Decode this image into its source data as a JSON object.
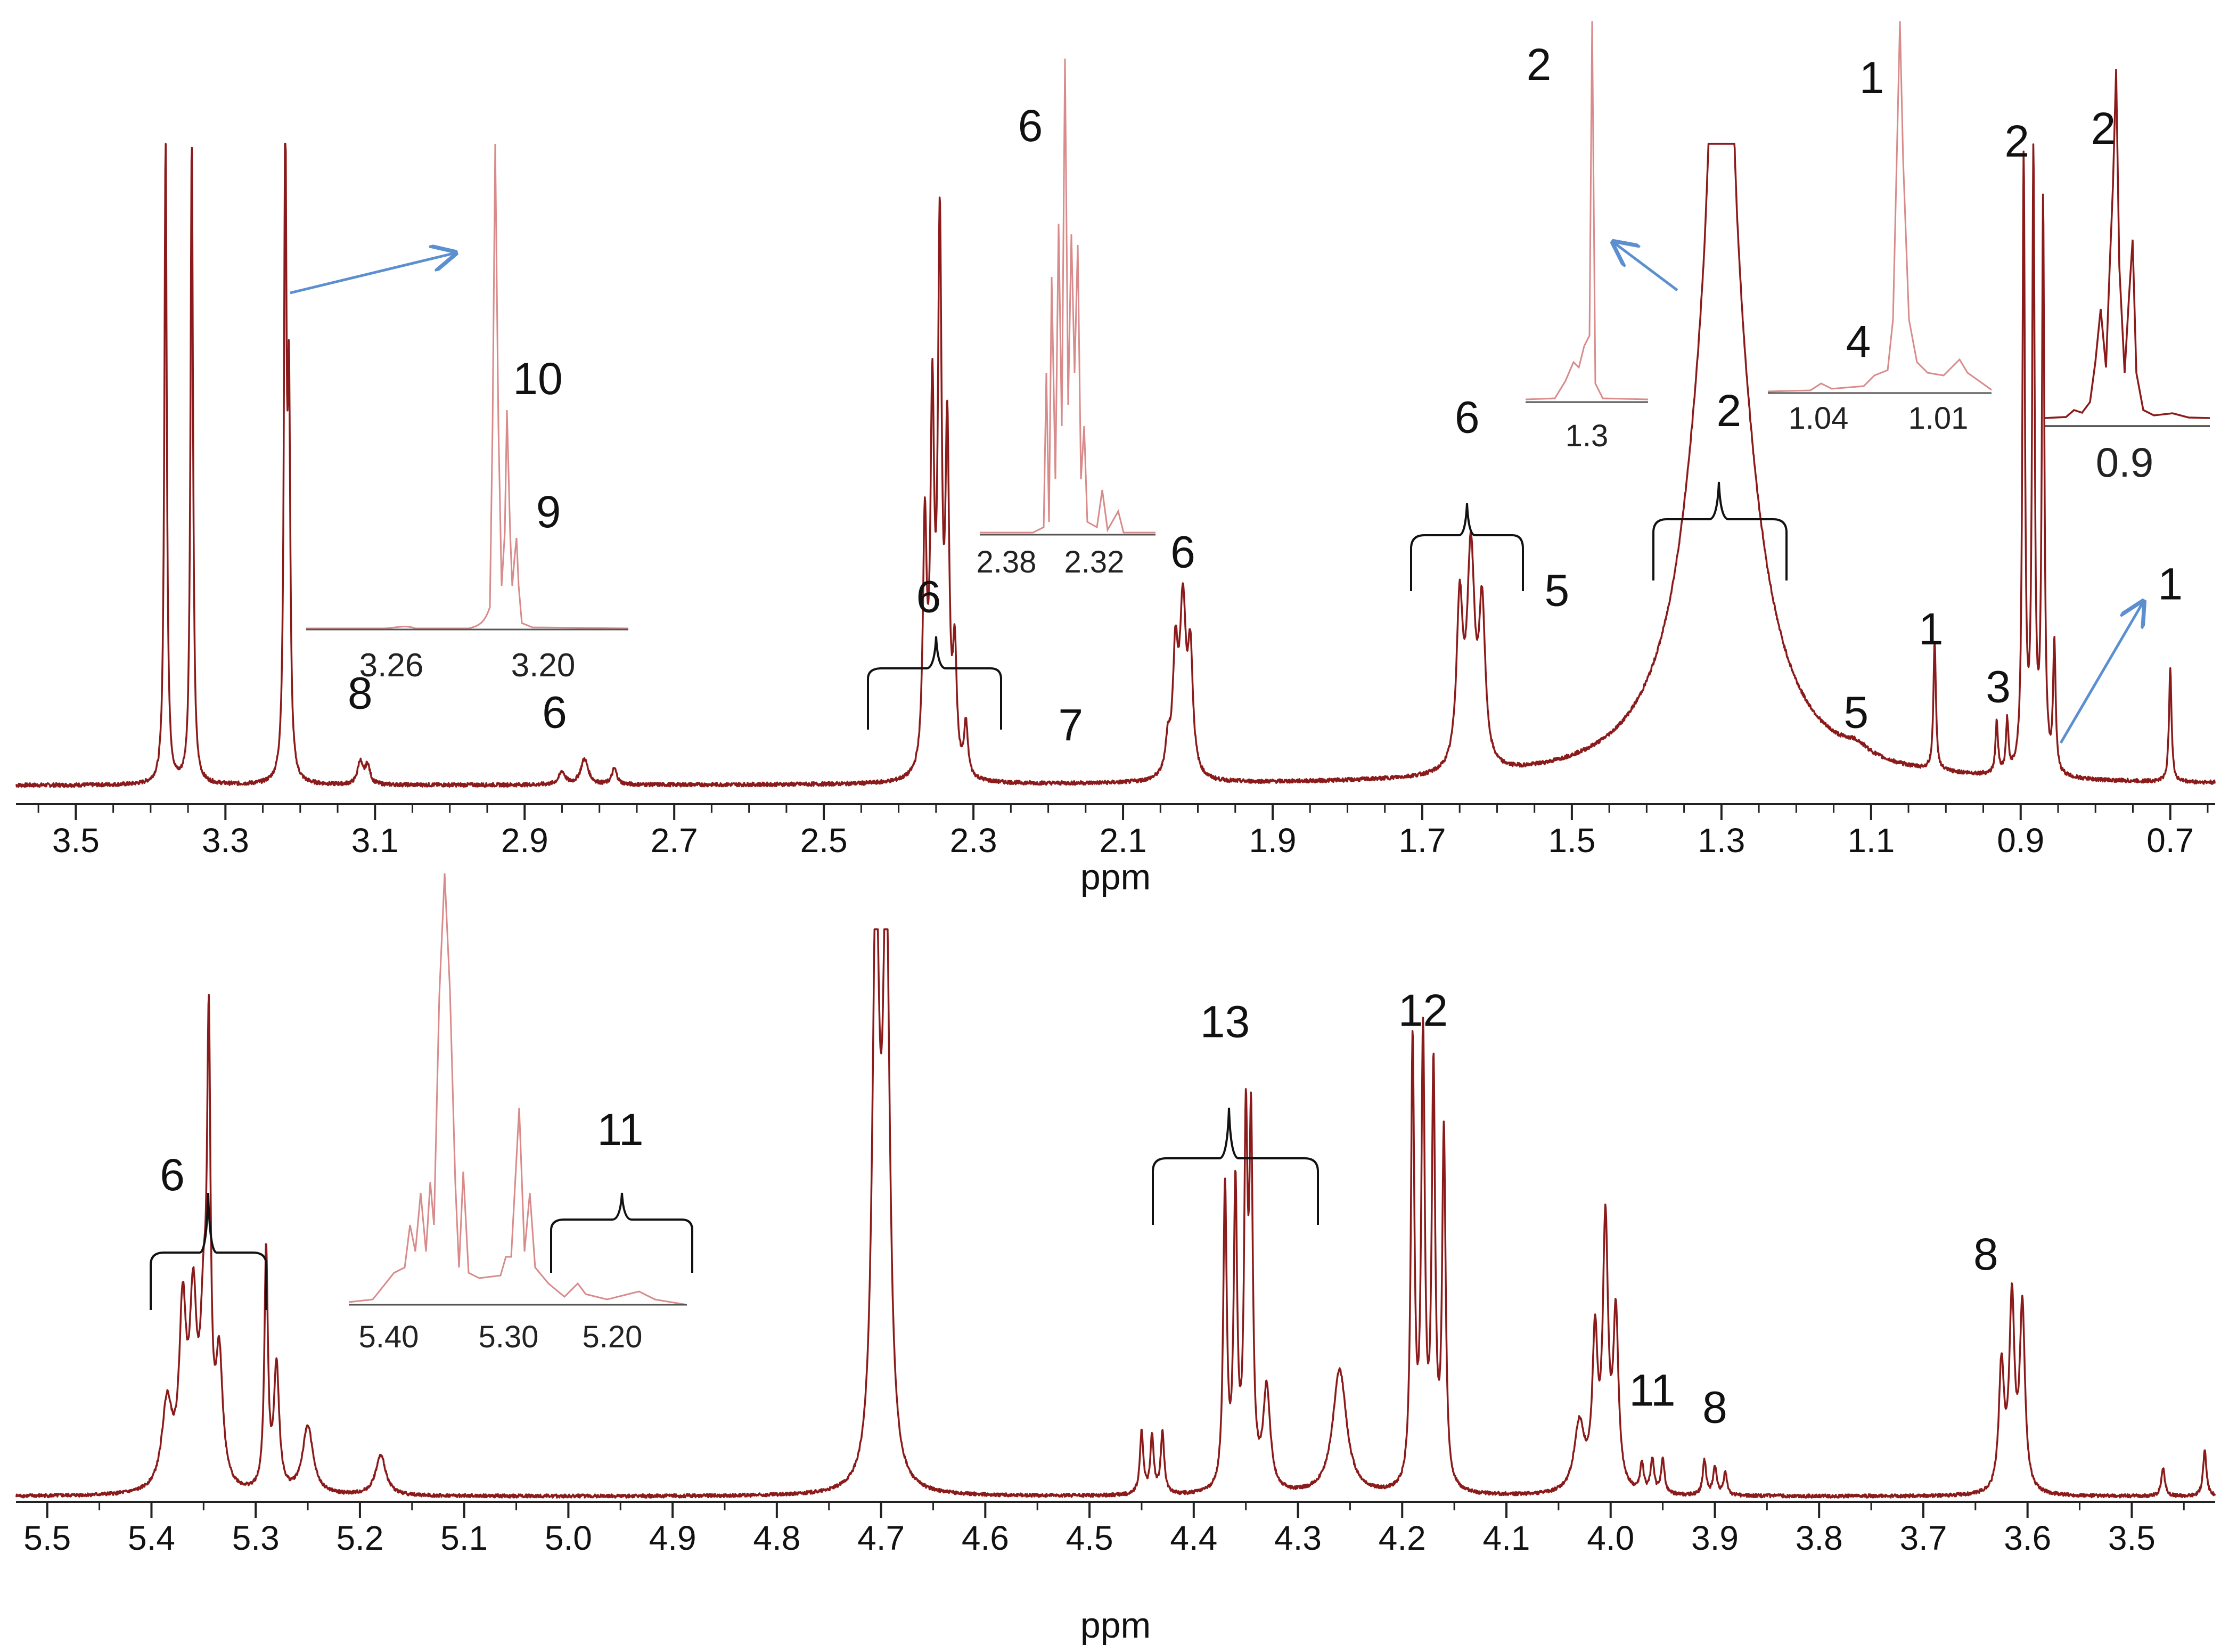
{
  "colors": {
    "spectrum": "#8b1a1a",
    "inset": "#d98a8a",
    "arrow": "#5b8fd0",
    "text": "#111111"
  },
  "chart_data": [
    {
      "type": "line",
      "panel": "top",
      "xlabel": "ppm",
      "xlim": [
        3.58,
        0.64
      ],
      "x_reversed": true,
      "xticks": [
        "3.5",
        "3.3",
        "3.1",
        "2.9",
        "2.7",
        "2.5",
        "2.3",
        "2.1",
        "1.9",
        "1.7",
        "1.5",
        "1.3",
        "1.1",
        "0.9",
        "0.7"
      ],
      "peaks": [
        {
          "x": 3.38,
          "height": 1.0,
          "width": 0.002,
          "clipped": true
        },
        {
          "x": 3.345,
          "height": 1.0,
          "width": 0.002,
          "clipped": true
        },
        {
          "x": 3.22,
          "height": 1.0,
          "width": 0.002,
          "clipped": true
        },
        {
          "x": 3.215,
          "height": 0.55,
          "width": 0.002
        },
        {
          "x": 3.12,
          "height": 0.035,
          "width": 0.004
        },
        {
          "x": 3.11,
          "height": 0.03,
          "width": 0.004
        },
        {
          "x": 2.85,
          "height": 0.02,
          "width": 0.005
        },
        {
          "x": 2.82,
          "height": 0.04,
          "width": 0.006
        },
        {
          "x": 2.78,
          "height": 0.025,
          "width": 0.004
        },
        {
          "x": 2.365,
          "height": 0.38,
          "width": 0.003
        },
        {
          "x": 2.355,
          "height": 0.55,
          "width": 0.003
        },
        {
          "x": 2.345,
          "height": 0.82,
          "width": 0.003
        },
        {
          "x": 2.335,
          "height": 0.5,
          "width": 0.003
        },
        {
          "x": 2.325,
          "height": 0.18,
          "width": 0.003
        },
        {
          "x": 2.31,
          "height": 0.08,
          "width": 0.003
        },
        {
          "x": 2.04,
          "height": 0.05,
          "width": 0.004
        },
        {
          "x": 2.03,
          "height": 0.18,
          "width": 0.004
        },
        {
          "x": 2.02,
          "height": 0.26,
          "width": 0.005
        },
        {
          "x": 2.01,
          "height": 0.18,
          "width": 0.004
        },
        {
          "x": 1.65,
          "height": 0.25,
          "width": 0.005
        },
        {
          "x": 1.635,
          "height": 0.33,
          "width": 0.006
        },
        {
          "x": 1.62,
          "height": 0.24,
          "width": 0.005
        },
        {
          "x": 1.3,
          "height": 0.95,
          "width": 0.045,
          "clipped": true
        },
        {
          "x": 1.31,
          "height": 0.4,
          "width": 0.006
        },
        {
          "x": 1.29,
          "height": 0.4,
          "width": 0.006
        },
        {
          "x": 1.12,
          "height": 0.015,
          "width": 0.02
        },
        {
          "x": 1.015,
          "height": 0.2,
          "width": 0.002
        },
        {
          "x": 0.932,
          "height": 0.08,
          "width": 0.002
        },
        {
          "x": 0.918,
          "height": 0.08,
          "width": 0.002
        },
        {
          "x": 0.896,
          "height": 0.95,
          "width": 0.002,
          "clipped": true
        },
        {
          "x": 0.883,
          "height": 0.95,
          "width": 0.002,
          "clipped": true
        },
        {
          "x": 0.87,
          "height": 0.88,
          "width": 0.002
        },
        {
          "x": 0.855,
          "height": 0.2,
          "width": 0.002
        },
        {
          "x": 0.7,
          "height": 0.18,
          "width": 0.002
        }
      ],
      "annotations": [
        {
          "text": "8",
          "x": 3.12,
          "level": 0.12
        },
        {
          "text": "6",
          "x": 2.86,
          "level": 0.09
        },
        {
          "text": "6",
          "x": 2.36,
          "level": 0.27
        },
        {
          "text": "7",
          "x": 2.17,
          "level": 0.07
        },
        {
          "text": "6",
          "x": 2.02,
          "level": 0.34
        },
        {
          "text": "6",
          "x": 1.64,
          "level": 0.55
        },
        {
          "text": "5",
          "x": 1.52,
          "level": 0.28
        },
        {
          "text": "2",
          "x": 1.29,
          "level": 0.56
        },
        {
          "text": "5",
          "x": 1.12,
          "level": 0.09
        },
        {
          "text": "1",
          "x": 1.02,
          "level": 0.22
        },
        {
          "text": "3",
          "x": 0.93,
          "level": 0.13
        },
        {
          "text": "2",
          "x": 0.905,
          "level": 0.98
        },
        {
          "text": "1",
          "x": 0.7,
          "level": 0.29
        }
      ],
      "insets": [
        {
          "xticks": [
            "3.26",
            "3.20"
          ],
          "labels": [
            "10",
            "9"
          ]
        },
        {
          "xticks": [
            "2.38",
            "2.32"
          ],
          "labels": [
            "6"
          ]
        },
        {
          "xticks": [
            "1.3"
          ],
          "labels": [
            "2"
          ]
        },
        {
          "xticks": [
            "1.04",
            "1.01"
          ],
          "labels": [
            "1",
            "4"
          ]
        },
        {
          "xticks": [
            "0.9"
          ],
          "labels": [
            "2"
          ]
        }
      ]
    },
    {
      "type": "line",
      "panel": "bottom",
      "xlabel": "ppm",
      "xlim": [
        5.53,
        3.42
      ],
      "x_reversed": true,
      "xticks": [
        "5.5",
        "5.4",
        "5.3",
        "5.2",
        "5.1",
        "5.0",
        "4.9",
        "4.8",
        "4.7",
        "4.6",
        "4.5",
        "4.4",
        "4.3",
        "4.2",
        "4.1",
        "4.0",
        "3.9",
        "3.8",
        "3.7",
        "3.6",
        "3.5"
      ],
      "peaks": [
        {
          "x": 5.385,
          "height": 0.15,
          "width": 0.006
        },
        {
          "x": 5.37,
          "height": 0.3,
          "width": 0.004
        },
        {
          "x": 5.36,
          "height": 0.3,
          "width": 0.004
        },
        {
          "x": 5.35,
          "height": 0.26,
          "width": 0.004
        },
        {
          "x": 5.345,
          "height": 0.72,
          "width": 0.002
        },
        {
          "x": 5.335,
          "height": 0.22,
          "width": 0.004
        },
        {
          "x": 5.29,
          "height": 0.42,
          "width": 0.002
        },
        {
          "x": 5.28,
          "height": 0.22,
          "width": 0.003
        },
        {
          "x": 5.25,
          "height": 0.12,
          "width": 0.006
        },
        {
          "x": 5.18,
          "height": 0.07,
          "width": 0.006
        },
        {
          "x": 4.705,
          "height": 1.0,
          "width": 0.004,
          "clipped": true
        },
        {
          "x": 4.695,
          "height": 1.0,
          "width": 0.004,
          "clipped": true
        },
        {
          "x": 4.45,
          "height": 0.11,
          "width": 0.002
        },
        {
          "x": 4.44,
          "height": 0.1,
          "width": 0.002
        },
        {
          "x": 4.43,
          "height": 0.11,
          "width": 0.002
        },
        {
          "x": 4.37,
          "height": 0.53,
          "width": 0.002
        },
        {
          "x": 4.36,
          "height": 0.52,
          "width": 0.002
        },
        {
          "x": 4.35,
          "height": 0.6,
          "width": 0.002
        },
        {
          "x": 4.345,
          "height": 0.6,
          "width": 0.002
        },
        {
          "x": 4.33,
          "height": 0.18,
          "width": 0.004
        },
        {
          "x": 4.26,
          "height": 0.22,
          "width": 0.008
        },
        {
          "x": 4.19,
          "height": 0.78,
          "width": 0.002
        },
        {
          "x": 4.18,
          "height": 0.78,
          "width": 0.002
        },
        {
          "x": 4.17,
          "height": 0.72,
          "width": 0.002
        },
        {
          "x": 4.16,
          "height": 0.62,
          "width": 0.002
        },
        {
          "x": 4.03,
          "height": 0.12,
          "width": 0.006
        },
        {
          "x": 4.015,
          "height": 0.26,
          "width": 0.003
        },
        {
          "x": 4.005,
          "height": 0.46,
          "width": 0.003
        },
        {
          "x": 3.995,
          "height": 0.3,
          "width": 0.003
        },
        {
          "x": 3.97,
          "height": 0.05,
          "width": 0.002
        },
        {
          "x": 3.96,
          "height": 0.06,
          "width": 0.002
        },
        {
          "x": 3.95,
          "height": 0.06,
          "width": 0.002
        },
        {
          "x": 3.91,
          "height": 0.06,
          "width": 0.002
        },
        {
          "x": 3.9,
          "height": 0.05,
          "width": 0.002
        },
        {
          "x": 3.89,
          "height": 0.04,
          "width": 0.002
        },
        {
          "x": 3.625,
          "height": 0.22,
          "width": 0.003
        },
        {
          "x": 3.615,
          "height": 0.33,
          "width": 0.003
        },
        {
          "x": 3.605,
          "height": 0.32,
          "width": 0.003
        },
        {
          "x": 3.47,
          "height": 0.05,
          "width": 0.002
        },
        {
          "x": 3.43,
          "height": 0.08,
          "width": 0.002
        }
      ],
      "annotations": [
        {
          "text": "6",
          "x": 5.38,
          "level": 0.54
        },
        {
          "text": "13",
          "x": 4.37,
          "level": 0.81
        },
        {
          "text": "12",
          "x": 4.18,
          "level": 0.83
        },
        {
          "text": "11",
          "x": 3.96,
          "level": 0.16
        },
        {
          "text": "8",
          "x": 3.9,
          "level": 0.13
        },
        {
          "text": "8",
          "x": 3.64,
          "level": 0.4
        }
      ],
      "insets": [
        {
          "xticks": [
            "5.40",
            "5.30",
            "5.20"
          ],
          "labels": [
            "11"
          ]
        }
      ]
    }
  ]
}
